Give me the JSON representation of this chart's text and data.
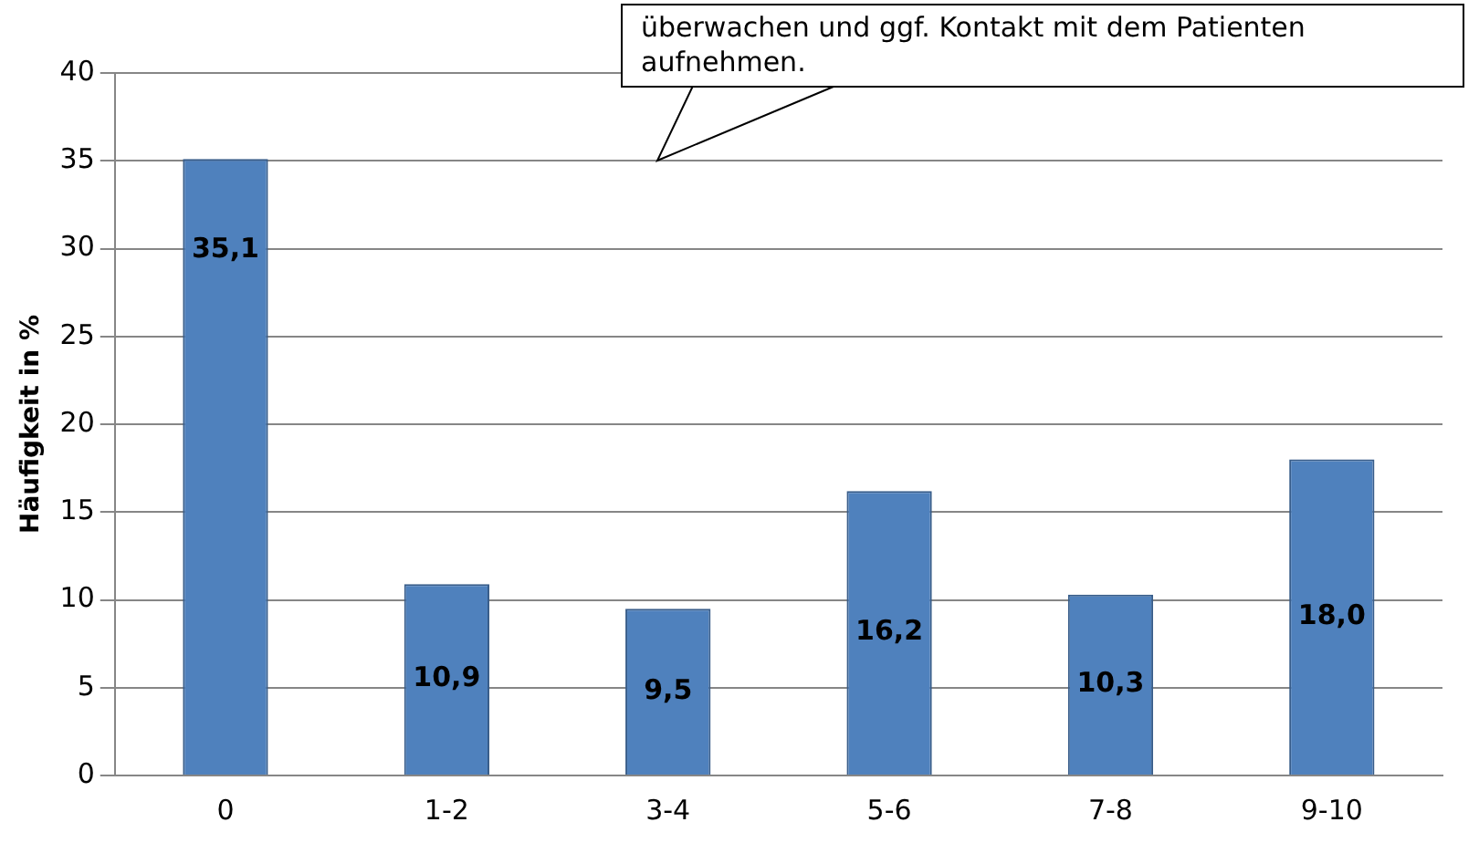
{
  "chart_data": {
    "type": "bar",
    "ylabel": "Häufigkeit in %",
    "categories": [
      "0",
      "1-2",
      "3-4",
      "5-6",
      "7-8",
      "9-10"
    ],
    "values": [
      35.1,
      10.9,
      9.5,
      16.2,
      10.3,
      18.0
    ],
    "value_labels": [
      "35,1",
      "10,9",
      "9,5",
      "16,2",
      "10,3",
      "18,0"
    ],
    "color": "#4f81bd",
    "ylim": [
      0,
      40
    ],
    "yticks": [
      0,
      5,
      10,
      15,
      20,
      25,
      30,
      35,
      40
    ],
    "grid": "y",
    "annotations": [
      "überwachen und ggf. Kontakt mit dem Patienten aufnehmen."
    ]
  }
}
